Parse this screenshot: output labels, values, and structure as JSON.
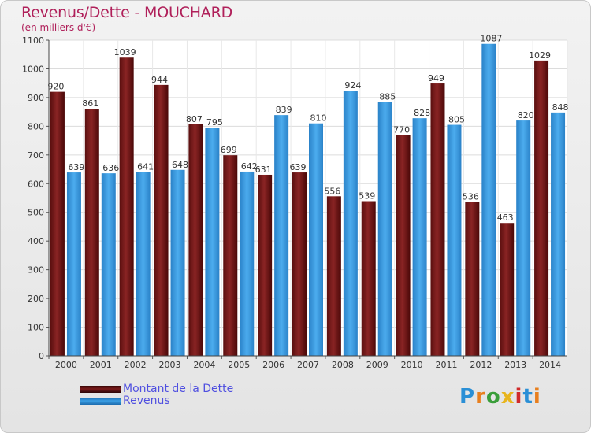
{
  "title": "Revenus/Dette - MOUCHARD",
  "subtitle": "(en milliers d'€)",
  "chart_data": {
    "type": "bar",
    "categories": [
      "2000",
      "2001",
      "2002",
      "2003",
      "2004",
      "2005",
      "2006",
      "2007",
      "2008",
      "2009",
      "2010",
      "2011",
      "2012",
      "2013",
      "2014"
    ],
    "series": [
      {
        "name": "Montant de la Dette",
        "color": "#7a1a1a",
        "values": [
          920,
          861,
          1039,
          944,
          807,
          699,
          631,
          639,
          556,
          539,
          770,
          949,
          536,
          463,
          1029
        ]
      },
      {
        "name": "Revenus",
        "color": "#3a9ee4",
        "values": [
          639,
          636,
          641,
          648,
          795,
          642,
          839,
          810,
          924,
          885,
          828,
          805,
          1087,
          820,
          848
        ]
      }
    ],
    "ylim": [
      0,
      1100
    ],
    "yticks": [
      0,
      100,
      200,
      300,
      400,
      500,
      600,
      700,
      800,
      900,
      1000,
      1100
    ],
    "grid": true,
    "legend_position": "bottom-left"
  },
  "legend": [
    {
      "label": "Montant de la Dette",
      "color": "#7a1a1a"
    },
    {
      "label": "Revenus",
      "color": "#3a9ee4"
    }
  ],
  "logo": {
    "text": "Proxiti",
    "letters": [
      "P",
      "r",
      "o",
      "x",
      "i",
      "t",
      "i"
    ],
    "colors": [
      "#2a8fd6",
      "#e87f1e",
      "#3a9e3a",
      "#e8b51e",
      "#d02a2a",
      "#2a8fd6",
      "#e87f1e"
    ]
  }
}
